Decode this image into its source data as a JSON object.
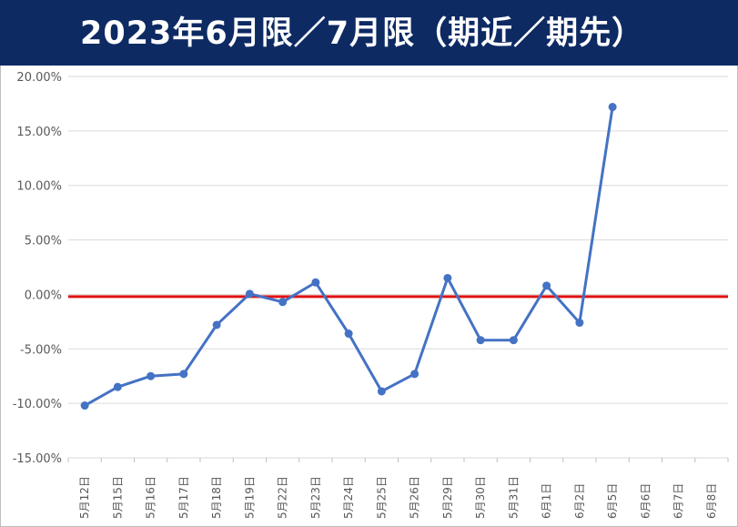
{
  "title": "2023年6月限／7月限（期近／期先）",
  "chart_data": {
    "type": "line",
    "title": "2023年6月限／7月限（期近／期先）",
    "xlabel": "",
    "ylabel": "",
    "categories": [
      "5月12日",
      "5月15日",
      "5月16日",
      "5月17日",
      "5月18日",
      "5月19日",
      "5月22日",
      "5月23日",
      "5月24日",
      "5月25日",
      "5月26日",
      "5月29日",
      "5月30日",
      "5月31日",
      "6月1日",
      "6月2日",
      "6月5日",
      "6月6日",
      "6月7日",
      "6月8日"
    ],
    "y_ticks": [
      "20.00%",
      "15.00%",
      "10.00%",
      "5.00%",
      "0.00%",
      "-5.00%",
      "-10.00%",
      "-15.00%"
    ],
    "ylim": [
      -15,
      20
    ],
    "grid": true,
    "series": [
      {
        "values": [
          -10.2,
          -8.5,
          -7.5,
          -7.3,
          -2.8,
          0.05,
          -0.7,
          1.1,
          -3.6,
          -8.9,
          -7.3,
          1.5,
          -4.2,
          -4.2,
          0.8,
          -2.6,
          17.2,
          null,
          null,
          null
        ],
        "color": "#4472c4"
      }
    ],
    "reference_line": {
      "value": -0.2,
      "color": "#e01010"
    }
  }
}
